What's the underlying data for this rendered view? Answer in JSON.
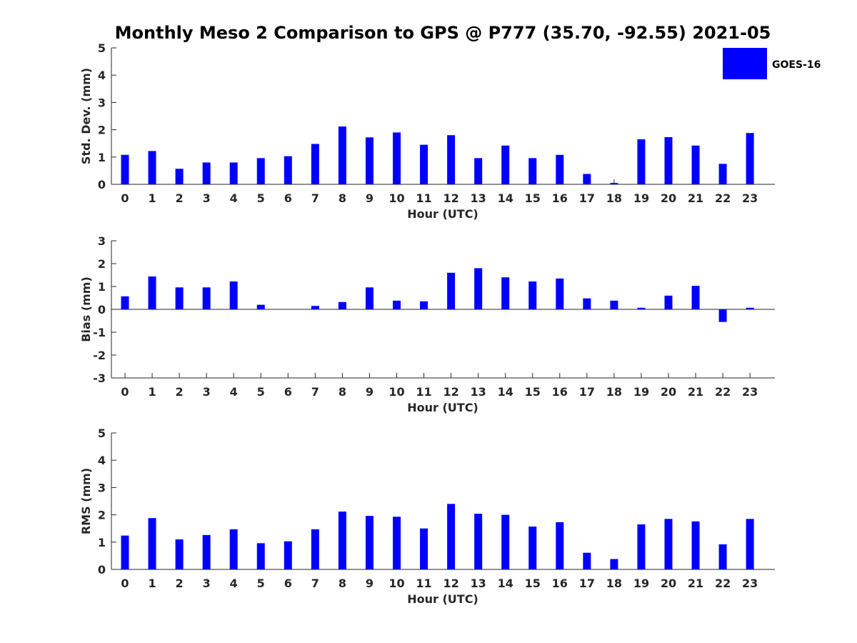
{
  "figure": {
    "title": "Monthly Meso 2 Comparison to GPS @ P777 (35.70, -92.55) 2021-05",
    "legend_label": "GOES-16",
    "bar_color": "#0000ff"
  },
  "chart_data": [
    {
      "type": "bar",
      "xlabel": "Hour (UTC)",
      "ylabel": "Std. Dev. (mm)",
      "categories": [
        "0",
        "1",
        "2",
        "3",
        "4",
        "5",
        "6",
        "7",
        "8",
        "9",
        "10",
        "11",
        "12",
        "13",
        "14",
        "15",
        "16",
        "17",
        "18",
        "19",
        "20",
        "21",
        "22",
        "23"
      ],
      "series": [
        {
          "name": "GOES-16",
          "values": [
            1.08,
            1.22,
            0.57,
            0.8,
            0.8,
            0.96,
            1.03,
            1.48,
            2.12,
            1.72,
            1.9,
            1.45,
            1.8,
            0.96,
            1.42,
            0.96,
            1.08,
            0.38,
            0.05,
            1.65,
            1.73,
            1.42,
            0.75,
            1.88
          ]
        }
      ],
      "ylim": [
        0,
        5
      ],
      "yticks": [
        "0",
        "1",
        "2",
        "3",
        "4",
        "5"
      ],
      "legend": "top-right"
    },
    {
      "type": "bar",
      "xlabel": "Hour (UTC)",
      "ylabel": "Bias (mm)",
      "categories": [
        "0",
        "1",
        "2",
        "3",
        "4",
        "5",
        "6",
        "7",
        "8",
        "9",
        "10",
        "11",
        "12",
        "13",
        "14",
        "15",
        "16",
        "17",
        "18",
        "19",
        "20",
        "21",
        "22",
        "23"
      ],
      "series": [
        {
          "name": "GOES-16",
          "values": [
            0.57,
            1.44,
            0.96,
            0.96,
            1.22,
            0.2,
            0.0,
            0.15,
            0.32,
            0.96,
            0.38,
            0.35,
            1.6,
            1.8,
            1.4,
            1.22,
            1.35,
            0.48,
            0.38,
            0.07,
            0.6,
            1.03,
            -0.55,
            0.07
          ]
        }
      ],
      "ylim": [
        -3,
        3
      ],
      "yticks": [
        "-3",
        "-2",
        "-1",
        "0",
        "1",
        "2",
        "3"
      ]
    },
    {
      "type": "bar",
      "xlabel": "Hour (UTC)",
      "ylabel": "RMS (mm)",
      "categories": [
        "0",
        "1",
        "2",
        "3",
        "4",
        "5",
        "6",
        "7",
        "8",
        "9",
        "10",
        "11",
        "12",
        "13",
        "14",
        "15",
        "16",
        "17",
        "18",
        "19",
        "20",
        "21",
        "22",
        "23"
      ],
      "series": [
        {
          "name": "GOES-16",
          "values": [
            1.24,
            1.88,
            1.1,
            1.26,
            1.47,
            0.96,
            1.03,
            1.47,
            2.12,
            1.96,
            1.93,
            1.5,
            2.4,
            2.04,
            2.0,
            1.57,
            1.73,
            0.61,
            0.38,
            1.65,
            1.85,
            1.76,
            0.92,
            1.85
          ]
        }
      ],
      "ylim": [
        0,
        5
      ],
      "yticks": [
        "0",
        "1",
        "2",
        "3",
        "4",
        "5"
      ]
    }
  ]
}
